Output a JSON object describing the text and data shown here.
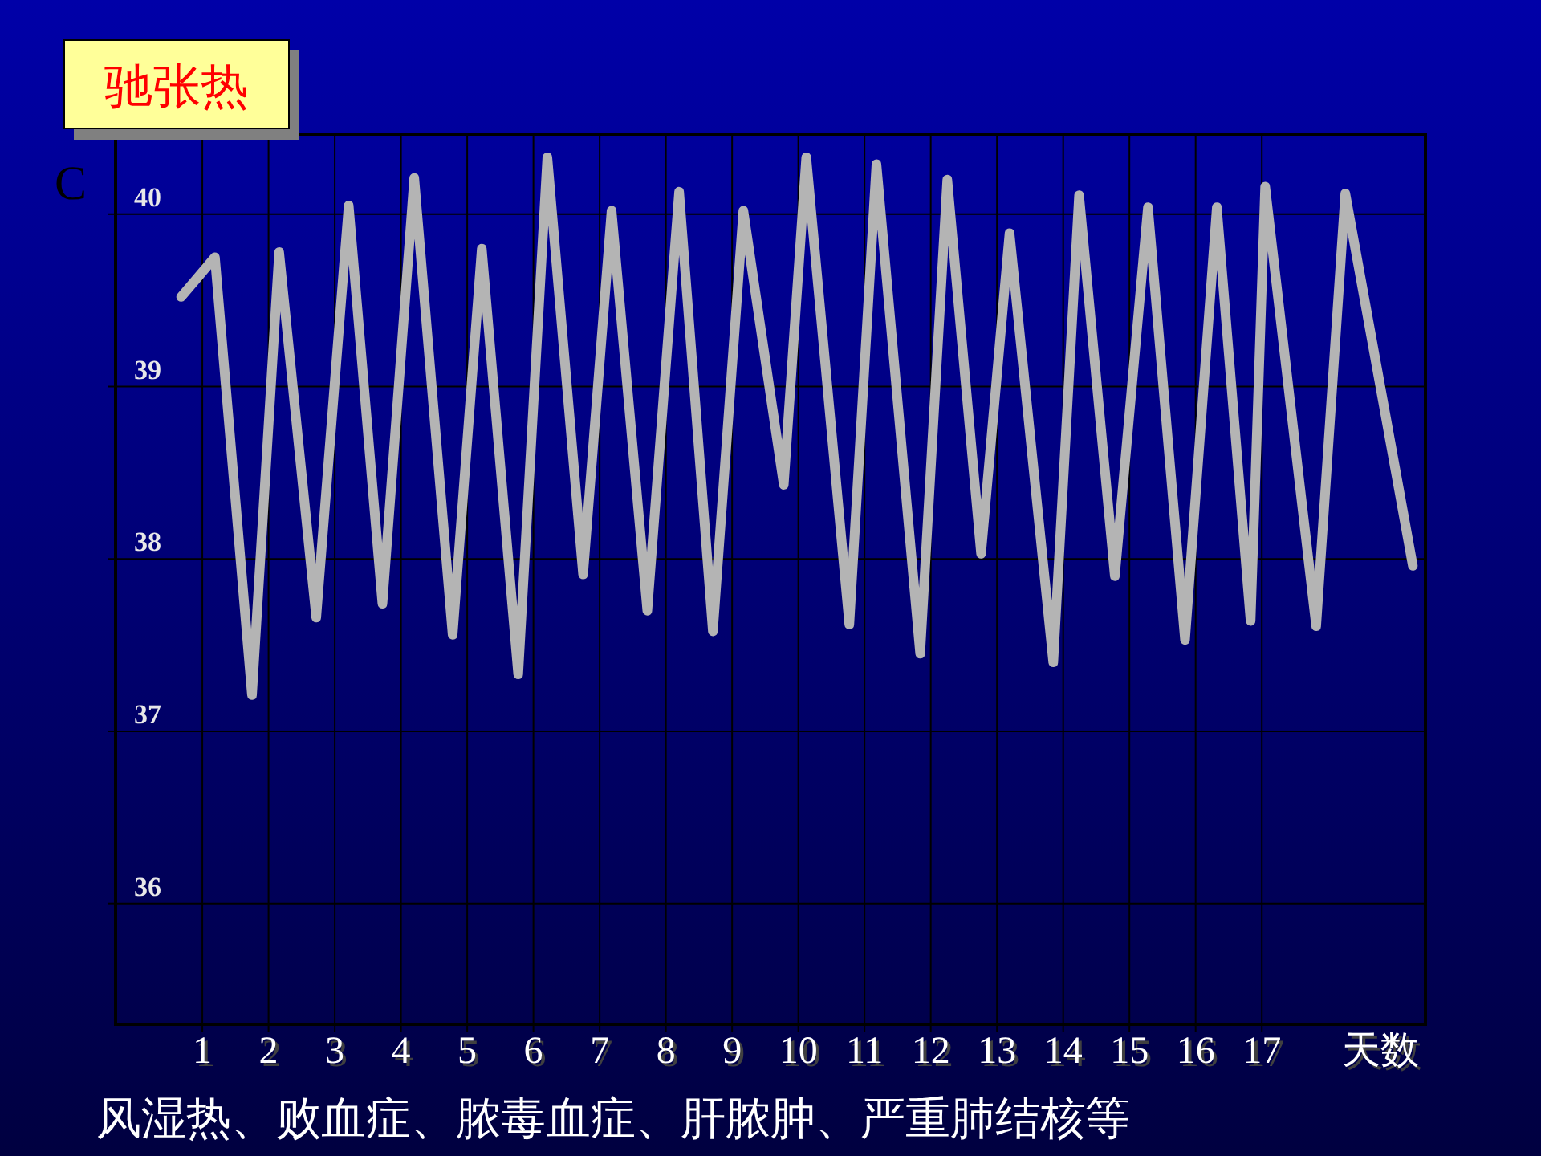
{
  "chart_data": {
    "type": "line",
    "title": "驰张热",
    "ylabel": "C",
    "xlabel": "天数",
    "annotations": [
      "风湿热、败血症、脓毒血症、肝脓肿、严重肺结核等"
    ],
    "series": [
      {
        "color": "#b4b4b4",
        "x": [
          0.68,
          1.19,
          1.75,
          2.16,
          2.72,
          3.21,
          3.72,
          4.2,
          4.78,
          5.22,
          5.77,
          6.21,
          6.75,
          7.18,
          7.72,
          8.2,
          8.71,
          9.17,
          9.78,
          10.12,
          10.77,
          11.18,
          11.84,
          12.25,
          12.76,
          13.19,
          13.85,
          14.24,
          14.78,
          15.28,
          15.84,
          16.32,
          16.83,
          17.05,
          17.82,
          18.26,
          19.28
        ],
        "values": [
          39.52,
          39.75,
          37.21,
          39.78,
          37.66,
          40.05,
          37.74,
          40.21,
          37.56,
          39.8,
          37.33,
          40.33,
          37.91,
          40.02,
          37.7,
          40.13,
          37.58,
          40.02,
          38.43,
          40.33,
          37.62,
          40.29,
          37.45,
          40.2,
          38.03,
          39.89,
          37.4,
          40.11,
          37.9,
          40.04,
          37.53,
          40.04,
          37.64,
          40.16,
          37.61,
          40.12,
          37.96
        ]
      }
    ],
    "xlim": [
      -0.31,
      19.47
    ],
    "ylim": [
      35.3,
      40.46
    ],
    "xticks": [
      1,
      2,
      3,
      4,
      5,
      6,
      7,
      8,
      9,
      10,
      11,
      12,
      13,
      14,
      15,
      16,
      17
    ],
    "yticks": [
      36,
      37,
      38,
      39,
      40
    ],
    "grid": true,
    "marker": "none",
    "line_style": "solid"
  }
}
